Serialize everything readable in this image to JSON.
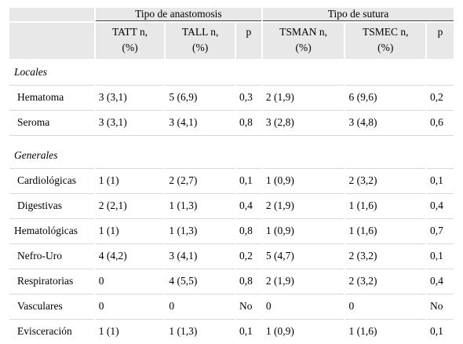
{
  "header": {
    "group1": "Tipo de anastomosis",
    "group2": "Tipo de sutura",
    "col_tatt_l1": "TATT n,",
    "col_tatt_l2": "(%)",
    "col_tall_l1": "TALL n,",
    "col_tall_l2": "(%)",
    "col_p1": "p",
    "col_tsman_l1": "TSMAN n,",
    "col_tsman_l2": "(%)",
    "col_tsmec_l1": "TSMEC n,",
    "col_tsmec_l2": "(%)",
    "col_p2": "p"
  },
  "sections": [
    {
      "title": "Locales",
      "rows": [
        {
          "label": "Hematoma",
          "tatt": "3 (3,1)",
          "tall": "5 (6,9)",
          "p1": "0,3",
          "tsman": "2 (1,9)",
          "tsmec": "6 (9,6)",
          "p2": "0,2"
        },
        {
          "label": "Seroma",
          "tatt": "3 (3,1)",
          "tall": "3 (4,1)",
          "p1": "0,8",
          "tsman": "3 (2,8)",
          "tsmec": "3 (4,8)",
          "p2": "0,6"
        }
      ]
    },
    {
      "title": "Generales",
      "rows": [
        {
          "label": "Cardiológicas",
          "tatt": "1 (1)",
          "tall": "2 (2,7)",
          "p1": "0,1",
          "tsman": "1 (0,9)",
          "tsmec": "2 (3,2)",
          "p2": "0,1"
        },
        {
          "label": "Digestivas",
          "tatt": "2 (2,1)",
          "tall": "1 (1,3)",
          "p1": "0,4",
          "tsman": "2 (1,9)",
          "tsmec": "1 (1,6)",
          "p2": "0,4"
        },
        {
          "label": "Hematológicas",
          "tatt": "1 (1)",
          "tall": "1 (1,3)",
          "p1": "0,8",
          "tsman": "1 (0,9)",
          "tsmec": "1 (1,6)",
          "p2": "0,7"
        },
        {
          "label": "Nefro-Uro",
          "tatt": "4 (4,2)",
          "tall": "3 (4,1)",
          "p1": "0,2",
          "tsman": "5 (4,7)",
          "tsmec": "2 (3,2)",
          "p2": "0,1"
        },
        {
          "label": "Respiratorias",
          "tatt": "0",
          "tall": "4 (5,5)",
          "p1": "0,8",
          "tsman": "2 (1,9)",
          "tsmec": "2 (3,2)",
          "p2": "0,4"
        },
        {
          "label": "Vasculares",
          "tatt": "0",
          "tall": "0",
          "p1": "No",
          "tsman": "0",
          "tsmec": "0",
          "p2": "No"
        },
        {
          "label": "Evisceración",
          "tatt": "1 (1)",
          "tall": "1 (1,3)",
          "p1": "0,1",
          "tsman": "1 (0,9)",
          "tsmec": "1 (1,6)",
          "p2": "0,1"
        }
      ]
    }
  ]
}
